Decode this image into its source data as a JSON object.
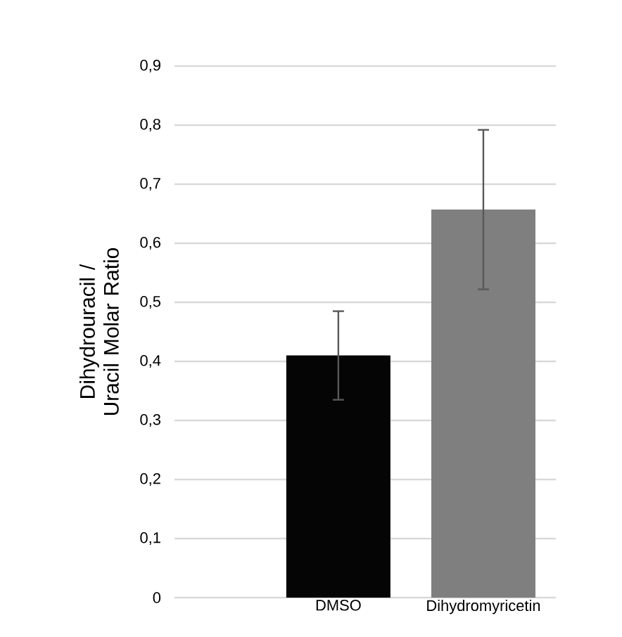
{
  "chart_data": {
    "type": "bar",
    "ylabel": "Dihydrouracil / Uracil Molar Ratio",
    "categories": [
      "DMSO",
      "Dihydromyricetin"
    ],
    "values": [
      0.41,
      0.657
    ],
    "errors": [
      0.075,
      0.135
    ],
    "colors": [
      "#050505",
      "#7f7f7f"
    ],
    "ylim": [
      0,
      0.9
    ],
    "yticks": [
      0,
      {
        "value": 0.1,
        "label": "0,1"
      },
      {
        "value": 0.2,
        "label": "0,2"
      },
      {
        "value": 0.3,
        "label": "0,3"
      },
      {
        "value": 0.4,
        "label": "0,4"
      },
      {
        "value": 0.5,
        "label": "0,5"
      },
      {
        "value": 0.6,
        "label": "0,6"
      },
      {
        "value": 0.7,
        "label": "0,7"
      },
      {
        "value": 0.8,
        "label": "0,8"
      },
      {
        "value": 0.9,
        "label": "0,9"
      }
    ],
    "grid": "y"
  }
}
